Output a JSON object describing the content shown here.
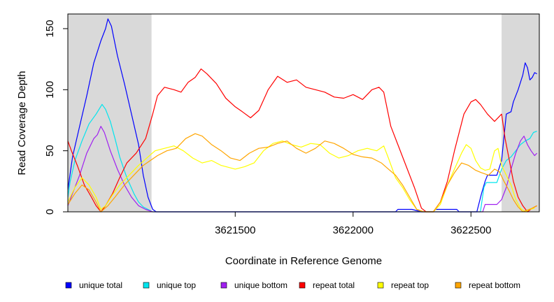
{
  "chart_data": {
    "type": "line",
    "title": "",
    "xlabel": "Coordinate in Reference Genome",
    "ylabel": "Read Coverage Depth",
    "xlim": [
      3620790,
      3622790
    ],
    "ylim": [
      0,
      162
    ],
    "x_ticks": [
      {
        "value": 3621500,
        "label": "3621500"
      },
      {
        "value": 3622000,
        "label": "3622000"
      },
      {
        "value": 3622500,
        "label": "3622500"
      }
    ],
    "y_ticks": [
      {
        "value": 0,
        "label": "0"
      },
      {
        "value": 50,
        "label": "50"
      },
      {
        "value": 100,
        "label": "100"
      },
      {
        "value": 150,
        "label": "150"
      }
    ],
    "shaded_regions": [
      {
        "x0": 3620790,
        "x1": 3621145,
        "color": "#d9d9d9"
      },
      {
        "x0": 3622630,
        "x1": 3622790,
        "color": "#d9d9d9"
      }
    ],
    "legend_position": "bottom",
    "series": [
      {
        "name": "unique total",
        "color": "#0000ff",
        "points": [
          [
            3620790,
            18
          ],
          [
            3620810,
            45
          ],
          [
            3620840,
            70
          ],
          [
            3620870,
            95
          ],
          [
            3620900,
            122
          ],
          [
            3620930,
            140
          ],
          [
            3620950,
            150
          ],
          [
            3620960,
            158
          ],
          [
            3620975,
            152
          ],
          [
            3621000,
            128
          ],
          [
            3621030,
            105
          ],
          [
            3621060,
            80
          ],
          [
            3621090,
            55
          ],
          [
            3621110,
            30
          ],
          [
            3621130,
            12
          ],
          [
            3621150,
            2
          ],
          [
            3621165,
            0
          ],
          [
            3621800,
            0
          ],
          [
            3622180,
            0
          ],
          [
            3622190,
            2
          ],
          [
            3622250,
            2
          ],
          [
            3622290,
            0
          ],
          [
            3622340,
            0
          ],
          [
            3622350,
            2
          ],
          [
            3622440,
            2
          ],
          [
            3622450,
            0
          ],
          [
            3622525,
            0
          ],
          [
            3622545,
            15
          ],
          [
            3622560,
            25
          ],
          [
            3622570,
            30
          ],
          [
            3622610,
            30
          ],
          [
            3622630,
            42
          ],
          [
            3622650,
            80
          ],
          [
            3622670,
            82
          ],
          [
            3622680,
            90
          ],
          [
            3622700,
            100
          ],
          [
            3622720,
            112
          ],
          [
            3622730,
            122
          ],
          [
            3622740,
            118
          ],
          [
            3622750,
            108
          ],
          [
            3622760,
            110
          ],
          [
            3622770,
            114
          ],
          [
            3622780,
            113
          ]
        ]
      },
      {
        "name": "unique top",
        "color": "#00e5ee",
        "points": [
          [
            3620790,
            12
          ],
          [
            3620800,
            25
          ],
          [
            3620820,
            42
          ],
          [
            3620850,
            58
          ],
          [
            3620880,
            72
          ],
          [
            3620910,
            80
          ],
          [
            3620935,
            88
          ],
          [
            3620950,
            84
          ],
          [
            3620970,
            74
          ],
          [
            3620990,
            60
          ],
          [
            3621010,
            45
          ],
          [
            3621040,
            28
          ],
          [
            3621070,
            15
          ],
          [
            3621090,
            8
          ],
          [
            3621110,
            4
          ],
          [
            3621130,
            2
          ],
          [
            3621150,
            0
          ],
          [
            3622540,
            0
          ],
          [
            3622555,
            20
          ],
          [
            3622565,
            24
          ],
          [
            3622610,
            24
          ],
          [
            3622630,
            35
          ],
          [
            3622650,
            42
          ],
          [
            3622670,
            45
          ],
          [
            3622690,
            50
          ],
          [
            3622710,
            55
          ],
          [
            3622730,
            58
          ],
          [
            3622750,
            60
          ],
          [
            3622765,
            65
          ],
          [
            3622780,
            66
          ]
        ]
      },
      {
        "name": "unique bottom",
        "color": "#a020f0",
        "points": [
          [
            3620790,
            5
          ],
          [
            3620810,
            15
          ],
          [
            3620840,
            30
          ],
          [
            3620870,
            48
          ],
          [
            3620900,
            60
          ],
          [
            3620915,
            63
          ],
          [
            3620930,
            70
          ],
          [
            3620945,
            65
          ],
          [
            3620970,
            50
          ],
          [
            3621000,
            35
          ],
          [
            3621030,
            22
          ],
          [
            3621060,
            12
          ],
          [
            3621090,
            5
          ],
          [
            3621120,
            2
          ],
          [
            3621150,
            0
          ],
          [
            3622550,
            0
          ],
          [
            3622560,
            6
          ],
          [
            3622600,
            6
          ],
          [
            3622610,
            6
          ],
          [
            3622630,
            10
          ],
          [
            3622650,
            20
          ],
          [
            3622670,
            35
          ],
          [
            3622690,
            48
          ],
          [
            3622710,
            58
          ],
          [
            3622725,
            62
          ],
          [
            3622740,
            55
          ],
          [
            3622755,
            50
          ],
          [
            3622770,
            46
          ],
          [
            3622780,
            48
          ]
        ]
      },
      {
        "name": "repeat total",
        "color": "#ff0000",
        "points": [
          [
            3620790,
            58
          ],
          [
            3620805,
            50
          ],
          [
            3620830,
            38
          ],
          [
            3620860,
            22
          ],
          [
            3620890,
            12
          ],
          [
            3620910,
            5
          ],
          [
            3620930,
            0
          ],
          [
            3620950,
            5
          ],
          [
            3620980,
            15
          ],
          [
            3621010,
            28
          ],
          [
            3621040,
            40
          ],
          [
            3621080,
            48
          ],
          [
            3621120,
            60
          ],
          [
            3621150,
            80
          ],
          [
            3621170,
            95
          ],
          [
            3621200,
            102
          ],
          [
            3621240,
            100
          ],
          [
            3621270,
            98
          ],
          [
            3621300,
            106
          ],
          [
            3621330,
            110
          ],
          [
            3621355,
            117
          ],
          [
            3621380,
            113
          ],
          [
            3621420,
            105
          ],
          [
            3621460,
            93
          ],
          [
            3621500,
            86
          ],
          [
            3621530,
            82
          ],
          [
            3621565,
            77
          ],
          [
            3621600,
            83
          ],
          [
            3621640,
            100
          ],
          [
            3621680,
            111
          ],
          [
            3621720,
            106
          ],
          [
            3621760,
            108
          ],
          [
            3621800,
            102
          ],
          [
            3621840,
            100
          ],
          [
            3621880,
            98
          ],
          [
            3621920,
            94
          ],
          [
            3621960,
            93
          ],
          [
            3622000,
            96
          ],
          [
            3622040,
            92
          ],
          [
            3622080,
            100
          ],
          [
            3622110,
            102
          ],
          [
            3622130,
            98
          ],
          [
            3622160,
            70
          ],
          [
            3622190,
            55
          ],
          [
            3622220,
            40
          ],
          [
            3622260,
            20
          ],
          [
            3622290,
            3
          ],
          [
            3622310,
            0
          ],
          [
            3622340,
            0
          ],
          [
            3622370,
            8
          ],
          [
            3622400,
            25
          ],
          [
            3622430,
            50
          ],
          [
            3622470,
            80
          ],
          [
            3622500,
            90
          ],
          [
            3622520,
            92
          ],
          [
            3622540,
            88
          ],
          [
            3622570,
            80
          ],
          [
            3622600,
            74
          ],
          [
            3622620,
            78
          ],
          [
            3622630,
            80
          ],
          [
            3622645,
            60
          ],
          [
            3622660,
            45
          ],
          [
            3622680,
            25
          ],
          [
            3622700,
            12
          ],
          [
            3622720,
            5
          ],
          [
            3622740,
            0
          ],
          [
            3622760,
            3
          ],
          [
            3622780,
            5
          ]
        ]
      },
      {
        "name": "repeat top",
        "color": "#ffff00",
        "points": [
          [
            3620790,
            8
          ],
          [
            3620820,
            20
          ],
          [
            3620850,
            28
          ],
          [
            3620880,
            22
          ],
          [
            3620910,
            12
          ],
          [
            3620930,
            2
          ],
          [
            3620950,
            5
          ],
          [
            3620980,
            14
          ],
          [
            3621010,
            22
          ],
          [
            3621050,
            30
          ],
          [
            3621090,
            38
          ],
          [
            3621130,
            45
          ],
          [
            3621160,
            50
          ],
          [
            3621200,
            52
          ],
          [
            3621240,
            54
          ],
          [
            3621280,
            50
          ],
          [
            3621320,
            44
          ],
          [
            3621360,
            40
          ],
          [
            3621400,
            42
          ],
          [
            3621440,
            38
          ],
          [
            3621500,
            35
          ],
          [
            3621540,
            37
          ],
          [
            3621580,
            40
          ],
          [
            3621620,
            50
          ],
          [
            3621660,
            56
          ],
          [
            3621700,
            58
          ],
          [
            3621740,
            55
          ],
          [
            3621780,
            53
          ],
          [
            3621820,
            56
          ],
          [
            3621860,
            55
          ],
          [
            3621900,
            48
          ],
          [
            3621940,
            44
          ],
          [
            3621980,
            46
          ],
          [
            3622020,
            50
          ],
          [
            3622060,
            52
          ],
          [
            3622100,
            50
          ],
          [
            3622130,
            54
          ],
          [
            3622150,
            44
          ],
          [
            3622180,
            28
          ],
          [
            3622210,
            20
          ],
          [
            3622240,
            10
          ],
          [
            3622270,
            2
          ],
          [
            3622300,
            0
          ],
          [
            3622340,
            0
          ],
          [
            3622370,
            6
          ],
          [
            3622400,
            22
          ],
          [
            3622430,
            35
          ],
          [
            3622460,
            48
          ],
          [
            3622480,
            55
          ],
          [
            3622500,
            52
          ],
          [
            3622520,
            42
          ],
          [
            3622540,
            36
          ],
          [
            3622560,
            34
          ],
          [
            3622580,
            35
          ],
          [
            3622600,
            50
          ],
          [
            3622615,
            52
          ],
          [
            3622630,
            38
          ],
          [
            3622650,
            30
          ],
          [
            3622670,
            22
          ],
          [
            3622690,
            10
          ],
          [
            3622710,
            3
          ],
          [
            3622730,
            0
          ],
          [
            3622750,
            2
          ],
          [
            3622770,
            3
          ]
        ]
      },
      {
        "name": "repeat bottom",
        "color": "#ffa500",
        "points": [
          [
            3620790,
            6
          ],
          [
            3620820,
            15
          ],
          [
            3620850,
            22
          ],
          [
            3620880,
            18
          ],
          [
            3620910,
            8
          ],
          [
            3620930,
            0
          ],
          [
            3620960,
            5
          ],
          [
            3620990,
            12
          ],
          [
            3621030,
            22
          ],
          [
            3621070,
            30
          ],
          [
            3621110,
            38
          ],
          [
            3621140,
            42
          ],
          [
            3621170,
            46
          ],
          [
            3621210,
            50
          ],
          [
            3621250,
            52
          ],
          [
            3621290,
            60
          ],
          [
            3621330,
            64
          ],
          [
            3621360,
            62
          ],
          [
            3621400,
            55
          ],
          [
            3621440,
            50
          ],
          [
            3621480,
            44
          ],
          [
            3621520,
            42
          ],
          [
            3621560,
            48
          ],
          [
            3621600,
            52
          ],
          [
            3621640,
            53
          ],
          [
            3621680,
            56
          ],
          [
            3621720,
            58
          ],
          [
            3621760,
            52
          ],
          [
            3621800,
            48
          ],
          [
            3621840,
            52
          ],
          [
            3621880,
            58
          ],
          [
            3621920,
            56
          ],
          [
            3621960,
            52
          ],
          [
            3622000,
            47
          ],
          [
            3622040,
            45
          ],
          [
            3622080,
            44
          ],
          [
            3622120,
            40
          ],
          [
            3622150,
            35
          ],
          [
            3622180,
            30
          ],
          [
            3622210,
            22
          ],
          [
            3622240,
            12
          ],
          [
            3622270,
            2
          ],
          [
            3622300,
            0
          ],
          [
            3622340,
            0
          ],
          [
            3622370,
            8
          ],
          [
            3622400,
            22
          ],
          [
            3622430,
            32
          ],
          [
            3622460,
            40
          ],
          [
            3622490,
            38
          ],
          [
            3622520,
            34
          ],
          [
            3622545,
            32
          ],
          [
            3622575,
            30
          ],
          [
            3622600,
            35
          ],
          [
            3622620,
            33
          ],
          [
            3622640,
            25
          ],
          [
            3622660,
            18
          ],
          [
            3622680,
            10
          ],
          [
            3622700,
            4
          ],
          [
            3622720,
            0
          ],
          [
            3622760,
            3
          ],
          [
            3622780,
            5
          ]
        ]
      }
    ]
  }
}
